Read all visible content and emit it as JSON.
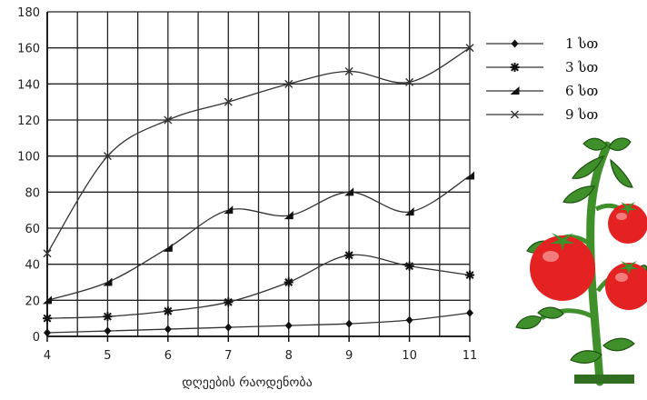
{
  "chart_data": {
    "type": "line",
    "x": [
      4,
      5,
      6,
      7,
      8,
      9,
      10,
      11
    ],
    "xlabel": "დღეების რაოდენობა",
    "ylabel": "",
    "ylim": [
      0,
      180
    ],
    "yticks": [
      0,
      20,
      40,
      60,
      80,
      100,
      120,
      140,
      160,
      180
    ],
    "grid": true,
    "legend_position": "right",
    "series": [
      {
        "name": "1 სთ",
        "marker": "diamond",
        "values": [
          2,
          3,
          4,
          5,
          6,
          7,
          9,
          13
        ]
      },
      {
        "name": "3 სთ",
        "marker": "star",
        "values": [
          10,
          11,
          14,
          19,
          30,
          45,
          39,
          34
        ]
      },
      {
        "name": "6 სთ",
        "marker": "triangle",
        "values": [
          20,
          30,
          49,
          70,
          67,
          80,
          69,
          89
        ]
      },
      {
        "name": "9 სთ",
        "marker": "cross",
        "values": [
          46,
          100,
          120,
          130,
          140,
          147,
          141,
          160
        ]
      }
    ]
  },
  "illustration": {
    "name": "tomato-plant-illustration",
    "leaf_color": "#3f8f2b",
    "fruit_color": "#e52222"
  }
}
